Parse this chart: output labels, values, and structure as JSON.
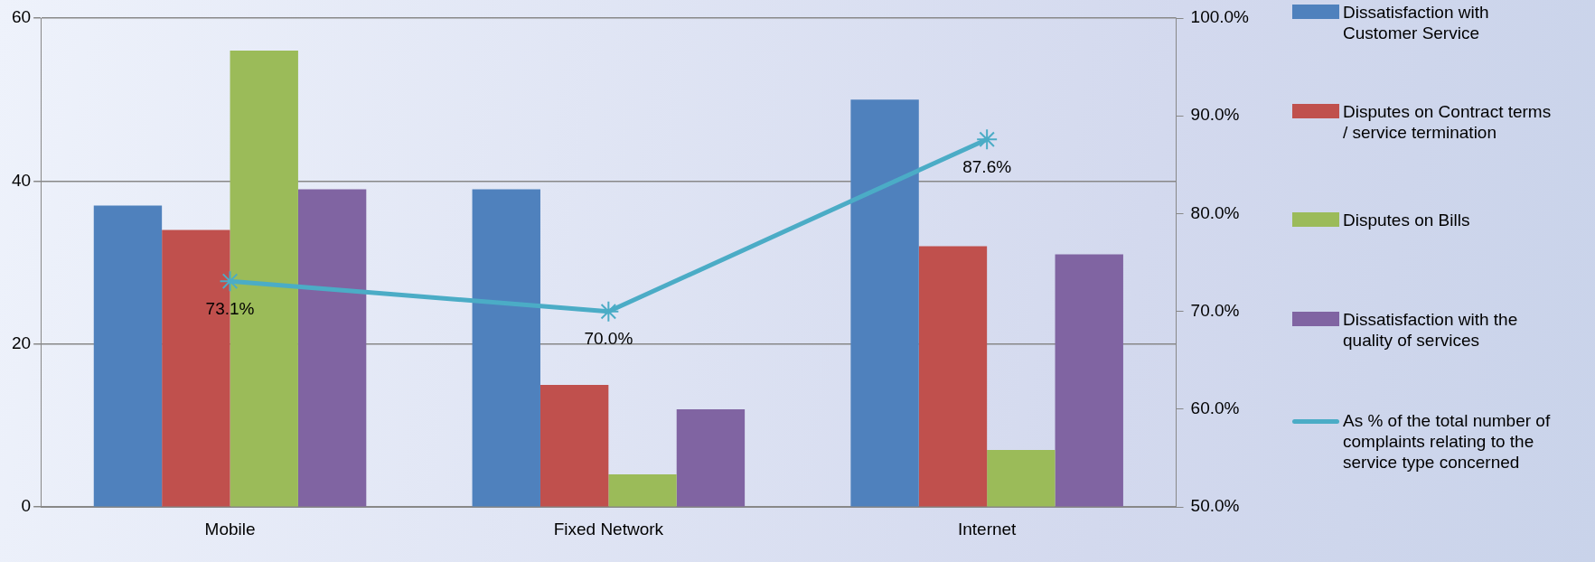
{
  "chart_data": {
    "type": "bar",
    "categories": [
      "Mobile",
      "Fixed Network",
      "Internet"
    ],
    "series": [
      {
        "name": "Dissatisfaction with Customer Service",
        "color": "#4f81bd",
        "values": [
          37,
          39,
          50
        ]
      },
      {
        "name": "Disputes on Contract terms / service termination",
        "color": "#c0504d",
        "values": [
          34,
          15,
          32
        ]
      },
      {
        "name": "Disputes on Bills",
        "color": "#9bbb59",
        "values": [
          56,
          4,
          7
        ]
      },
      {
        "name": "Dissatisfaction with the quality of services",
        "color": "#8064a2",
        "values": [
          39,
          12,
          31
        ]
      },
      {
        "name": "As % of the total number of complaints relating to the service type concerned",
        "type": "line",
        "axis": "y2",
        "color": "#4bacc6",
        "values": [
          73.1,
          70.0,
          87.6
        ],
        "value_labels": [
          "73.1%",
          "70.0%",
          "87.6%"
        ],
        "marker": "cross"
      }
    ],
    "ylim": [
      0,
      60
    ],
    "yticks": [
      0,
      20,
      40,
      60
    ],
    "y2lim": [
      50,
      100
    ],
    "y2ticks": [
      {
        "value": 50,
        "label": "50.0%"
      },
      {
        "value": 60,
        "label": "60.0%"
      },
      {
        "value": 70,
        "label": "70.0%"
      },
      {
        "value": 80,
        "label": "80.0%"
      },
      {
        "value": 90,
        "label": "90.0%"
      },
      {
        "value": 100,
        "label": "100.0%"
      }
    ],
    "grid": "y",
    "legend": "right"
  }
}
